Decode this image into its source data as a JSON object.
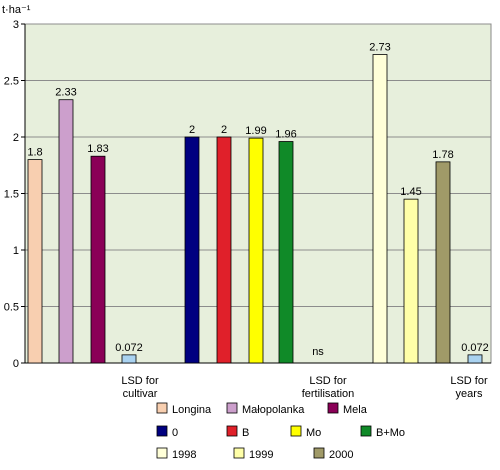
{
  "chart_data": {
    "type": "bar",
    "y_unit_label": "t·ha⁻¹",
    "ylim": [
      0,
      3
    ],
    "yticks": [
      0,
      0.5,
      1,
      1.5,
      2,
      2.5,
      3
    ],
    "grid": true,
    "plot_background": "#e7efdc",
    "bars": [
      {
        "series": "Longina",
        "value": 1.8,
        "label": "1.8",
        "color": "#f8cfb0"
      },
      {
        "series": "Małopolanka",
        "value": 2.33,
        "label": "2.33",
        "color": "#cc9fcc"
      },
      {
        "series": "Mela",
        "value": 1.83,
        "label": "1.83",
        "color": "#8a0057"
      },
      {
        "series": "LSD for cultivar",
        "value": 0.072,
        "label": "0.072",
        "color": "#a9d2f0"
      },
      {
        "series": "0",
        "value": 2,
        "label": "2",
        "color": "#000080"
      },
      {
        "series": "B",
        "value": 2,
        "label": "2",
        "color": "#e0202a"
      },
      {
        "series": "Mo",
        "value": 1.99,
        "label": "1.99",
        "color": "#ffff00"
      },
      {
        "series": "B+Mo",
        "value": 1.96,
        "label": "1.96",
        "color": "#108a28"
      },
      {
        "series": "LSD for fertilisation",
        "value": null,
        "label": "ns",
        "color": "#ffffff"
      },
      {
        "series": "1998",
        "value": 2.73,
        "label": "2.73",
        "color": "#ffffd8"
      },
      {
        "series": "1999",
        "value": 1.45,
        "label": "1.45",
        "color": "#ffffa8"
      },
      {
        "series": "2000",
        "value": 1.78,
        "label": "1.78",
        "color": "#a09a68"
      },
      {
        "series": "LSD for years",
        "value": 0.072,
        "label": "0.072",
        "color": "#a9d2f0"
      }
    ],
    "category_captions": [
      {
        "lines": [
          "LSD for",
          "cultivar"
        ]
      },
      {
        "lines": [
          "LSD for",
          "fertilisation"
        ]
      },
      {
        "lines": [
          "LSD for",
          "years"
        ]
      }
    ],
    "legend_rows": [
      [
        {
          "name": "Longina",
          "color": "#f8cfb0"
        },
        {
          "name": "Małopolanka",
          "color": "#cc9fcc"
        },
        {
          "name": "Mela",
          "color": "#8a0057"
        }
      ],
      [
        {
          "name": "0",
          "color": "#000080"
        },
        {
          "name": "B",
          "color": "#e0202a"
        },
        {
          "name": "Mo",
          "color": "#ffff00"
        },
        {
          "name": "B+Mo",
          "color": "#108a28"
        }
      ],
      [
        {
          "name": "1998",
          "color": "#ffffd8"
        },
        {
          "name": "1999",
          "color": "#ffffa8"
        },
        {
          "name": "2000",
          "color": "#a09a68"
        }
      ]
    ],
    "legend_placement": "bottom"
  }
}
